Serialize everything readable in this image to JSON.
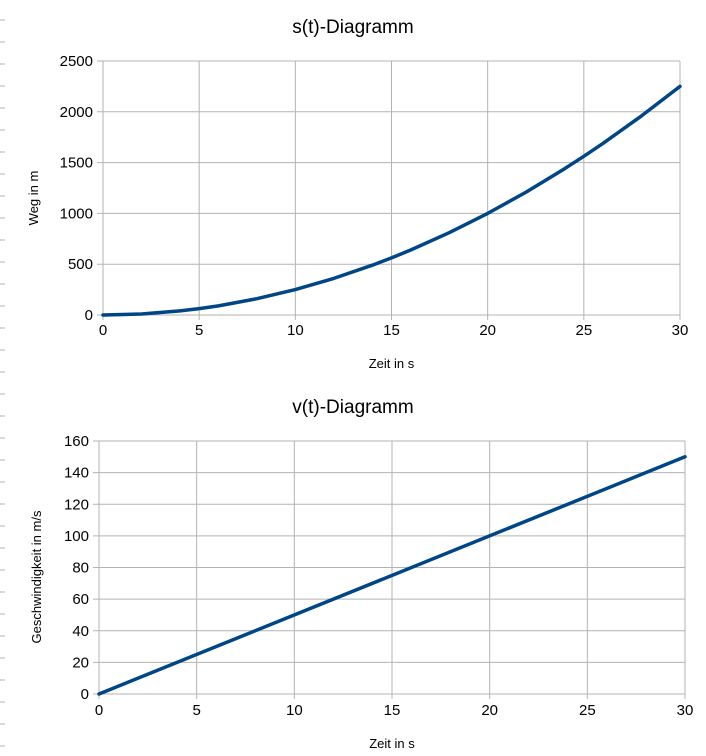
{
  "colors": {
    "line": "#004586",
    "grid": "#b3b3b3",
    "axis": "#b3b3b3"
  },
  "chart_data": [
    {
      "type": "line",
      "title": "s(t)-Diagramm",
      "xlabel": "Zeit in s",
      "ylabel": "Weg in m",
      "xlim": [
        0,
        30
      ],
      "ylim": [
        0,
        2500
      ],
      "xticks": [
        0,
        5,
        10,
        15,
        20,
        25,
        30
      ],
      "yticks": [
        0,
        500,
        1000,
        1500,
        2000,
        2500
      ],
      "grid": true,
      "series": [
        {
          "x": [
            0,
            2,
            4,
            5,
            6,
            8,
            10,
            12,
            14,
            15,
            16,
            18,
            20,
            22,
            24,
            25,
            26,
            28,
            30
          ],
          "y": [
            0,
            10,
            40,
            62.5,
            90,
            160,
            250,
            360,
            490,
            562.5,
            640,
            810,
            1000,
            1210,
            1440,
            1562.5,
            1690,
            1960,
            2250
          ]
        }
      ]
    },
    {
      "type": "line",
      "title": "v(t)-Diagramm",
      "xlabel": "Zeit in s",
      "ylabel": "Geschwindigkeit in m/s",
      "xlim": [
        0,
        30
      ],
      "ylim": [
        0,
        160
      ],
      "xticks": [
        0,
        5,
        10,
        15,
        20,
        25,
        30
      ],
      "yticks": [
        0,
        20,
        40,
        60,
        80,
        100,
        120,
        140,
        160
      ],
      "grid": true,
      "series": [
        {
          "x": [
            0,
            30
          ],
          "y": [
            0,
            150
          ]
        }
      ]
    }
  ]
}
